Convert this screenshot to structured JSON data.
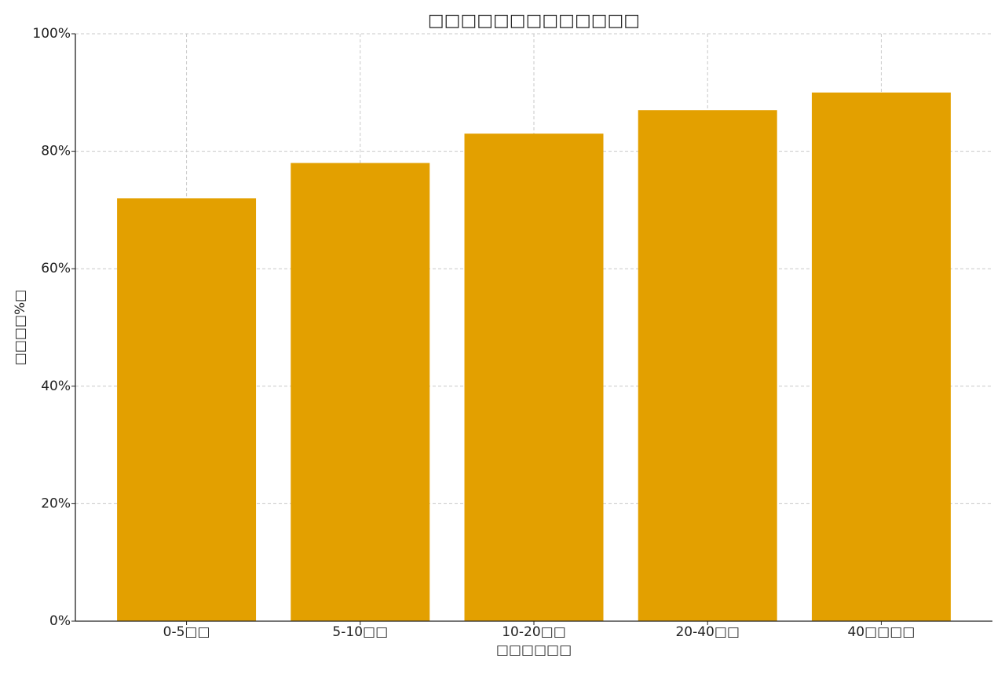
{
  "chart_data": {
    "type": "bar",
    "title": "□□□□□□□□□□□□□",
    "x_label": "□□□□□□",
    "y_label": "□□□□%□",
    "categories": [
      "0-5□□",
      "5-10□□",
      "10-20□□",
      "20-40□□",
      "40□□□□"
    ],
    "values": [
      72,
      78,
      83,
      87,
      90
    ],
    "color": "#e3a000",
    "ylim": [
      0,
      100
    ],
    "yticks": [
      {
        "value": 0,
        "label": "0%"
      },
      {
        "value": 20,
        "label": "20%"
      },
      {
        "value": 40,
        "label": "40%"
      },
      {
        "value": 60,
        "label": "60%"
      },
      {
        "value": 80,
        "label": "80%"
      },
      {
        "value": 100,
        "label": "100%"
      }
    ],
    "grid": true
  }
}
